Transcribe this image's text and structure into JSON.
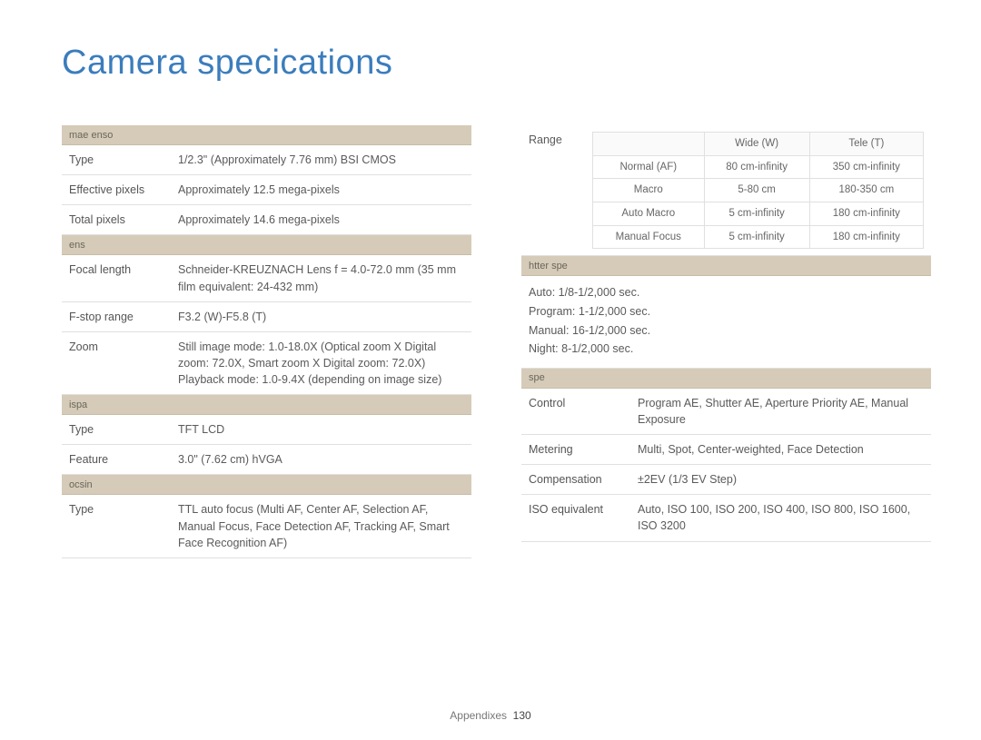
{
  "title": "Camera specications",
  "footer_label": "Appendixes",
  "page_number": "130",
  "left": {
    "sec1": {
      "header": "mae enso",
      "rows": [
        {
          "label": "Type",
          "value": "1/2.3\" (Approximately 7.76 mm) BSI CMOS"
        },
        {
          "label": "Effective pixels",
          "value": "Approximately 12.5 mega-pixels"
        },
        {
          "label": "Total pixels",
          "value": "Approximately 14.6 mega-pixels"
        }
      ]
    },
    "sec2": {
      "header": "ens",
      "rows": [
        {
          "label": "Focal length",
          "value": "Schneider-KREUZNACH Lens f = 4.0-72.0 mm\n(35 mm film equivalent: 24-432 mm)"
        },
        {
          "label": "F-stop range",
          "value": "F3.2 (W)-F5.8 (T)"
        },
        {
          "label": "Zoom",
          "value": "Still image mode: 1.0-18.0X\n(Optical zoom X Digital zoom: 72.0X,\nSmart zoom X Digital zoom: 72.0X)\nPlayback mode: 1.0-9.4X (depending on image size)"
        }
      ]
    },
    "sec3": {
      "header": "ispa",
      "rows": [
        {
          "label": "Type",
          "value": "TFT LCD"
        },
        {
          "label": "Feature",
          "value": "3.0\" (7.62 cm) hVGA"
        }
      ]
    },
    "sec4": {
      "header": "ocsin",
      "rows": [
        {
          "label": "Type",
          "value": "TTL auto focus (Multi AF, Center AF, Selection AF, Manual Focus, Face Detection AF, Tracking AF, Smart Face Recognition AF)"
        }
      ]
    }
  },
  "right": {
    "range": {
      "label": "Range",
      "col_headers": [
        "",
        "Wide (W)",
        "Tele (T)"
      ],
      "rows": [
        {
          "mode": "Normal (AF)",
          "wide": "80 cm-infinity",
          "tele": "350 cm-infinity"
        },
        {
          "mode": "Macro",
          "wide": "5-80 cm",
          "tele": "180-350 cm"
        },
        {
          "mode": "Auto Macro",
          "wide": "5 cm-infinity",
          "tele": "180 cm-infinity"
        },
        {
          "mode": "Manual Focus",
          "wide": "5 cm-infinity",
          "tele": "180 cm-infinity"
        }
      ]
    },
    "shutter": {
      "header": "htter spe",
      "lines": [
        "Auto: 1/8-1/2,000 sec.",
        "Program: 1-1/2,000 sec.",
        "Manual: 16-1/2,000 sec.",
        "Night: 8-1/2,000 sec."
      ]
    },
    "exposure": {
      "header": "spe",
      "rows": [
        {
          "label": "Control",
          "value": "Program AE, Shutter AE, Aperture Priority AE, Manual Exposure"
        },
        {
          "label": "Metering",
          "value": "Multi, Spot, Center-weighted, Face Detection"
        },
        {
          "label": "Compensation",
          "value": "±2EV (1/3 EV Step)"
        },
        {
          "label": "ISO equivalent",
          "value": "Auto, ISO 100, ISO 200, ISO 400, ISO 800, ISO 1600, ISO 3200"
        }
      ]
    }
  }
}
